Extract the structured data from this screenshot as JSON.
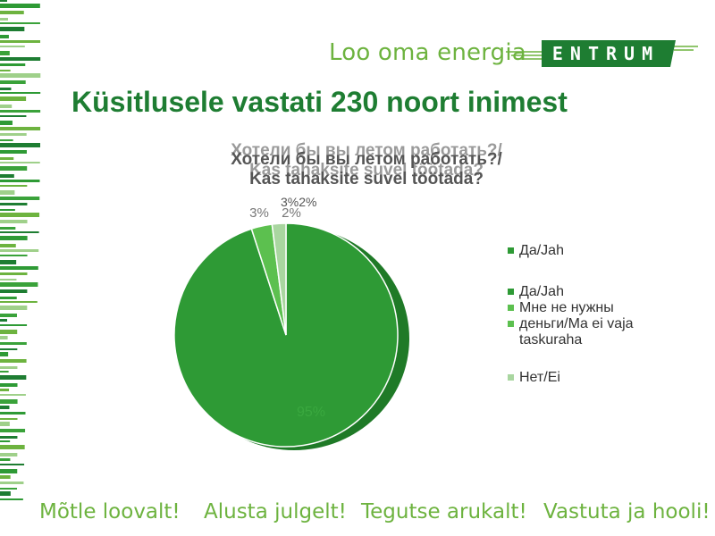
{
  "brand": {
    "slogan": "Loo oma energia",
    "logo_text": "ENTRUM"
  },
  "title": "Küsitlusele vastati 230 noort inimest",
  "chart_data": {
    "type": "pie",
    "title_lines": [
      "Хотели бы вы летом работать?/",
      "Kas tahaksite suvel töötada?"
    ],
    "top_label": "3%2%",
    "categories": [
      "Да/Jah",
      "Мне не нужны деньги/Ma ei vaja taskuraha",
      "Нет/Ei"
    ],
    "values": [
      95,
      3,
      2
    ],
    "data_labels": [
      "95%",
      "3%",
      "2%"
    ],
    "colors": [
      "#2e9a35",
      "#5cc04f",
      "#a9d6a0"
    ],
    "legend_labels": {
      "first": "Да/Jah",
      "second_block": [
        "Да/Jah",
        "Мне не нужны",
        "деньги/Ma ei vaja",
        "taskuraha"
      ],
      "third": "Нет/Ei"
    },
    "legend_position": "right"
  },
  "footer": {
    "slogans": [
      "Mõtle loovalt!",
      "Alusta julgelt!",
      "Tegutse arukalt!",
      "Vastuta ja hooli!"
    ]
  },
  "colors": {
    "brand_green": "#1e7d32",
    "light_green": "#6db33f"
  }
}
